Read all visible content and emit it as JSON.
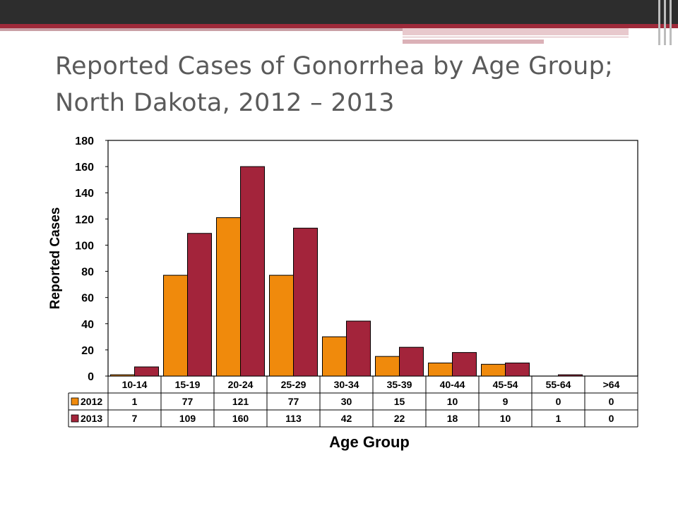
{
  "slide": {
    "title_line1": "Reported Cases of Gonorrhea by Age Group;",
    "title_line2": "North Dakota, 2012 – 2013"
  },
  "colors": {
    "series_2012": "#f08a0c",
    "series_2013": "#a3243b",
    "banner_dark": "#2d2d2d",
    "banner_red": "#9e2a3a"
  },
  "chart_data": {
    "type": "bar",
    "categories": [
      "10-14",
      "15-19",
      "20-24",
      "25-29",
      "30-34",
      "35-39",
      "40-44",
      "45-54",
      "55-64",
      ">64"
    ],
    "series": [
      {
        "name": "2012",
        "values": [
          1,
          77,
          121,
          77,
          30,
          15,
          10,
          9,
          0,
          0
        ]
      },
      {
        "name": "2013",
        "values": [
          7,
          109,
          160,
          113,
          42,
          22,
          18,
          10,
          1,
          0
        ]
      }
    ],
    "xlabel": "Age Group",
    "ylabel": "Reported Cases",
    "ylim": [
      0,
      180
    ],
    "yticks": [
      0,
      20,
      40,
      60,
      80,
      100,
      120,
      140,
      160,
      180
    ],
    "grid": false,
    "legend": "data-table"
  }
}
